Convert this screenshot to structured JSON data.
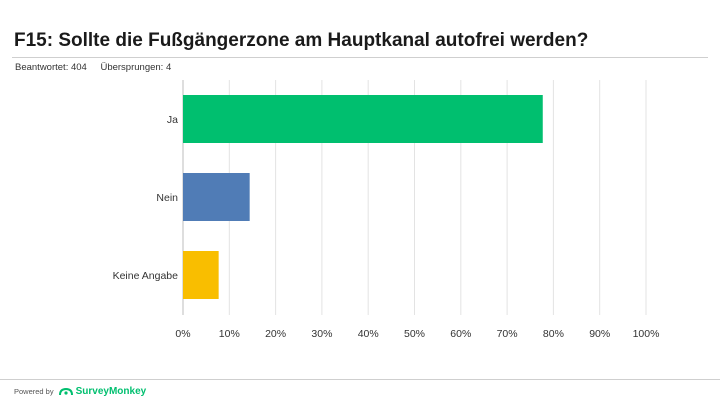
{
  "header": {
    "title": "F15: Sollte die Fußgängerzone am Hauptkanal autofrei werden?",
    "answered": "Beantwortet: 404",
    "skipped": "Übersprungen: 4"
  },
  "footer": {
    "powered_by": "Powered by",
    "brand": "SurveyMonkey",
    "brand_color": "#00bf6f"
  },
  "chart_data": {
    "type": "bar",
    "orientation": "horizontal",
    "categories": [
      "Ja",
      "Nein",
      "Keine Angabe"
    ],
    "values": [
      77.7,
      14.4,
      7.7
    ],
    "colors": [
      "#00bf6f",
      "#507cb6",
      "#f9be00"
    ],
    "xlim": [
      0,
      100
    ],
    "xticks": [
      "0%",
      "10%",
      "20%",
      "30%",
      "40%",
      "50%",
      "60%",
      "70%",
      "80%",
      "90%",
      "100%"
    ],
    "grid": true
  }
}
